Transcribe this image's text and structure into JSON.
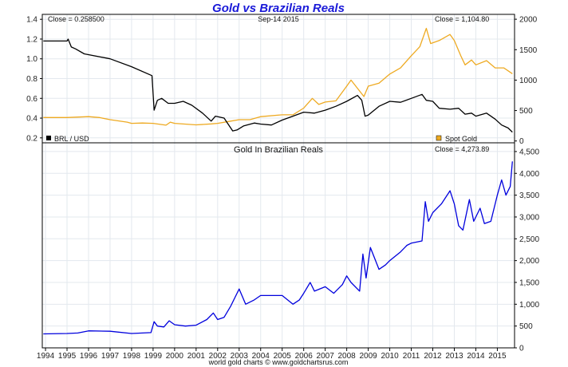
{
  "chart_data": [
    {
      "type": "line",
      "title": "Gold vs Brazilian Reals",
      "date_label": "Sep-14  2015",
      "left_close": "Close = 0.258500",
      "right_close": "Close = 1,104.80",
      "grid": true,
      "left_axis": {
        "ylim": [
          0.15,
          1.45
        ],
        "ticks": [
          "0.2",
          "0.4",
          "0.6",
          "0.8",
          "1.0",
          "1.2",
          "1.4"
        ]
      },
      "right_axis": {
        "ylim": [
          -30,
          2080
        ],
        "ticks": [
          "0",
          "500",
          "1000",
          "1500",
          "2000"
        ]
      },
      "xlim": [
        1993.85,
        2015.8
      ],
      "series": [
        {
          "name": "BRL / USD",
          "axis": "left",
          "color": "#000000",
          "x": [
            1993.9,
            1995.0,
            1995.05,
            1995.2,
            1995.4,
            1995.8,
            1997,
            1998,
            1998.95,
            1999.05,
            1999.2,
            1999.4,
            1999.7,
            2000,
            2000.4,
            2000.8,
            2001.3,
            2001.7,
            2001.9,
            2002.3,
            2002.7,
            2002.9,
            2003.2,
            2003.7,
            2004,
            2004.5,
            2005,
            2005.5,
            2006,
            2006.5,
            2007,
            2007.5,
            2008,
            2008.5,
            2008.7,
            2008.85,
            2009,
            2009.5,
            2010,
            2010.5,
            2011,
            2011.5,
            2011.7,
            2012,
            2012.3,
            2012.8,
            2013.2,
            2013.5,
            2013.8,
            2014,
            2014.5,
            2014.9,
            2015.2,
            2015.5,
            2015.7
          ],
          "y": [
            1.18,
            1.18,
            1.2,
            1.12,
            1.1,
            1.05,
            1.0,
            0.92,
            0.83,
            0.48,
            0.58,
            0.6,
            0.55,
            0.55,
            0.57,
            0.53,
            0.45,
            0.37,
            0.42,
            0.4,
            0.27,
            0.28,
            0.32,
            0.35,
            0.34,
            0.33,
            0.38,
            0.42,
            0.46,
            0.45,
            0.48,
            0.52,
            0.57,
            0.63,
            0.58,
            0.42,
            0.43,
            0.52,
            0.57,
            0.56,
            0.6,
            0.64,
            0.58,
            0.57,
            0.5,
            0.49,
            0.5,
            0.44,
            0.45,
            0.42,
            0.45,
            0.39,
            0.33,
            0.3,
            0.2585
          ]
        },
        {
          "name": "Spot Gold",
          "axis": "right",
          "color": "#eeaa22",
          "x": [
            1993.9,
            1995,
            1996,
            1996.5,
            1997,
            1997.8,
            1998,
            1998.5,
            1999,
            1999.6,
            1999.8,
            2000,
            2001,
            2001.7,
            2002,
            2002.5,
            2003,
            2003.5,
            2004,
            2005,
            2005.5,
            2006,
            2006.4,
            2006.7,
            2007,
            2007.5,
            2008,
            2008.2,
            2008.8,
            2009,
            2009.5,
            2010,
            2010.5,
            2011,
            2011.4,
            2011.7,
            2011.9,
            2012.3,
            2012.8,
            2013,
            2013.3,
            2013.5,
            2013.8,
            2014,
            2014.5,
            2014.9,
            2015.3,
            2015.7
          ],
          "y": [
            385,
            385,
            400,
            385,
            350,
            310,
            290,
            295,
            290,
            260,
            310,
            290,
            265,
            280,
            290,
            320,
            350,
            350,
            400,
            430,
            430,
            540,
            700,
            600,
            640,
            660,
            900,
            1000,
            730,
            900,
            950,
            1100,
            1200,
            1400,
            1550,
            1850,
            1600,
            1650,
            1750,
            1650,
            1400,
            1250,
            1330,
            1250,
            1320,
            1200,
            1200,
            1104.8
          ]
        }
      ]
    },
    {
      "type": "line",
      "title": "Gold In Brazilian Reals",
      "close": "Close = 4,273.89",
      "grid": true,
      "ylim": [
        0,
        4700
      ],
      "yticks": [
        "0",
        "500",
        "1,000",
        "1,500",
        "2,000",
        "2,500",
        "3,000",
        "3,500",
        "4,000",
        "4,500"
      ],
      "xticks": [
        "1994",
        "1995",
        "1996",
        "1997",
        "1998",
        "1999",
        "2000",
        "2001",
        "2002",
        "2003",
        "2004",
        "2005",
        "2006",
        "2007",
        "2008",
        "2009",
        "2010",
        "2011",
        "2012",
        "2013",
        "2014",
        "2015"
      ],
      "xlim": [
        1993.85,
        2015.8
      ],
      "series": [
        {
          "color": "#0000dd",
          "x": [
            1993.9,
            1995,
            1995.5,
            1996,
            1997,
            1998,
            1998.9,
            1999.05,
            1999.2,
            1999.5,
            1999.75,
            2000,
            2000.5,
            2001,
            2001.5,
            2001.8,
            2002,
            2002.3,
            2002.6,
            2002.9,
            2003,
            2003.3,
            2003.7,
            2004,
            2004.5,
            2005,
            2005.5,
            2005.8,
            2006,
            2006.3,
            2006.5,
            2007,
            2007.4,
            2007.8,
            2008,
            2008.2,
            2008.6,
            2008.75,
            2008.9,
            2009.1,
            2009.5,
            2009.8,
            2010,
            2010.5,
            2010.8,
            2011,
            2011.5,
            2011.65,
            2011.8,
            2012,
            2012.4,
            2012.8,
            2013,
            2013.2,
            2013.4,
            2013.7,
            2013.9,
            2014.2,
            2014.4,
            2014.7,
            2015.0,
            2015.2,
            2015.4,
            2015.6,
            2015.7
          ],
          "y": [
            320,
            330,
            340,
            390,
            380,
            330,
            350,
            600,
            500,
            480,
            620,
            530,
            500,
            520,
            650,
            800,
            650,
            700,
            950,
            1250,
            1350,
            1000,
            1100,
            1200,
            1200,
            1200,
            1000,
            1100,
            1250,
            1500,
            1300,
            1400,
            1250,
            1450,
            1650,
            1500,
            1300,
            2150,
            1600,
            2300,
            1800,
            1900,
            2000,
            2200,
            2350,
            2400,
            2450,
            3350,
            2900,
            3100,
            3300,
            3600,
            3300,
            2800,
            2700,
            3400,
            2900,
            3200,
            2850,
            2900,
            3500,
            3850,
            3500,
            3700,
            4273.89
          ]
        }
      ]
    }
  ],
  "footer": "world gold charts © www.goldchartsrus.com"
}
